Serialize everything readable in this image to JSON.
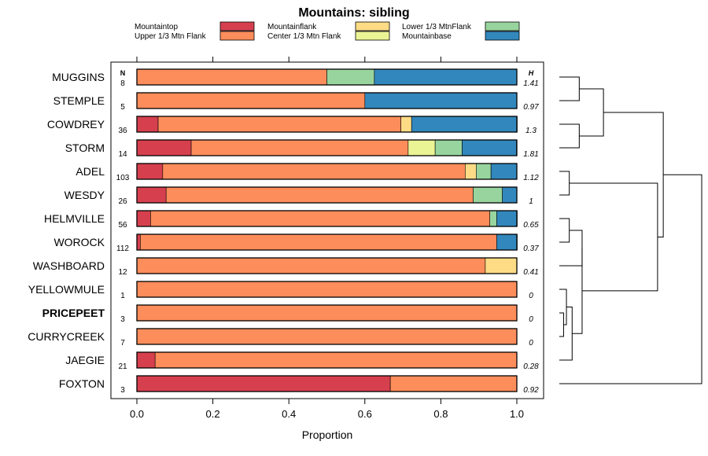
{
  "chart_data": {
    "type": "bar",
    "stacked": true,
    "orientation": "horizontal",
    "title": "Mountains: sibling",
    "xlabel": "Proportion",
    "ylabel": "",
    "xlim": [
      0,
      1
    ],
    "xticks": [
      "0.0",
      "0.2",
      "0.4",
      "0.6",
      "0.8",
      "1.0"
    ],
    "n_header": "N",
    "h_header": "H",
    "legend_position": "top",
    "series": [
      {
        "name": "Mountaintop",
        "color": "#d6404e",
        "values": [
          0,
          0,
          0.056,
          0.143,
          0.068,
          0.077,
          0.036,
          0.009,
          0,
          0,
          0,
          0,
          0.048,
          0.667
        ]
      },
      {
        "name": "Upper 1/3 Mtn Flank",
        "color": "#fd8d5b",
        "values": [
          0.5,
          0.6,
          0.639,
          0.571,
          0.796,
          0.808,
          0.893,
          0.938,
          0.917,
          1,
          1,
          1,
          0.952,
          0.333
        ]
      },
      {
        "name": "Mountainflank",
        "color": "#fedc86",
        "values": [
          0,
          0,
          0.028,
          0,
          0.029,
          0,
          0,
          0,
          0.083,
          0,
          0,
          0,
          0,
          0
        ]
      },
      {
        "name": "Center 1/3 Mtn Flank",
        "color": "#ebf495",
        "values": [
          0,
          0,
          0,
          0.071,
          0,
          0,
          0,
          0,
          0,
          0,
          0,
          0,
          0,
          0
        ]
      },
      {
        "name": "Lower 1/3 MtnFlank",
        "color": "#98d59e",
        "values": [
          0.125,
          0,
          0,
          0.071,
          0.039,
          0.077,
          0.018,
          0,
          0,
          0,
          0,
          0,
          0,
          0
        ]
      },
      {
        "name": "Mountainbase",
        "color": "#3287bc",
        "values": [
          0.375,
          0.4,
          0.278,
          0.143,
          0.068,
          0.038,
          0.054,
          0.054,
          0,
          0,
          0,
          0,
          0,
          0
        ]
      }
    ],
    "categories": [
      "MUGGINS",
      "STEMPLE",
      "COWDREY",
      "STORM",
      "ADEL",
      "WESDY",
      "HELMVILLE",
      "WOROCK",
      "WASHBOARD",
      "YELLOWMULE",
      "PRICEPEET",
      "CURRYCREEK",
      "JAEGIE",
      "FOXTON"
    ],
    "bold_categories": [
      "PRICEPEET"
    ],
    "n_values": [
      "8",
      "5",
      "36",
      "14",
      "103",
      "26",
      "56",
      "112",
      "12",
      "1",
      "3",
      "7",
      "21",
      "3"
    ],
    "h_values": [
      "1.41",
      "0.97",
      "1.3",
      "1.81",
      "1.12",
      "1",
      "0.65",
      "0.37",
      "0.41",
      "0",
      "0",
      "0",
      "0.28",
      "0.92"
    ],
    "dendrogram": {
      "leaf_order": [
        "MUGGINS",
        "STEMPLE",
        "COWDREY",
        "STORM",
        "ADEL",
        "WESDY",
        "HELMVILLE",
        "WOROCK",
        "WASHBOARD",
        "YELLOWMULE",
        "PRICEPEET",
        "CURRYCREEK",
        "JAEGIE",
        "FOXTON"
      ],
      "merges": [
        [
          0,
          1,
          0.14
        ],
        [
          2,
          3,
          0.14
        ],
        [
          -1,
          -2,
          0.31
        ],
        [
          4,
          5,
          0.07
        ],
        [
          6,
          7,
          0.07
        ],
        [
          10,
          11,
          0.03
        ],
        [
          9,
          -6,
          0.05
        ],
        [
          -7,
          12,
          0.09
        ],
        [
          -5,
          8,
          0.16
        ],
        [
          -9,
          -8,
          0.16
        ],
        [
          -4,
          -10,
          0.69
        ],
        [
          -3,
          -11,
          0.73
        ],
        [
          -12,
          13,
          1.0
        ]
      ]
    }
  }
}
